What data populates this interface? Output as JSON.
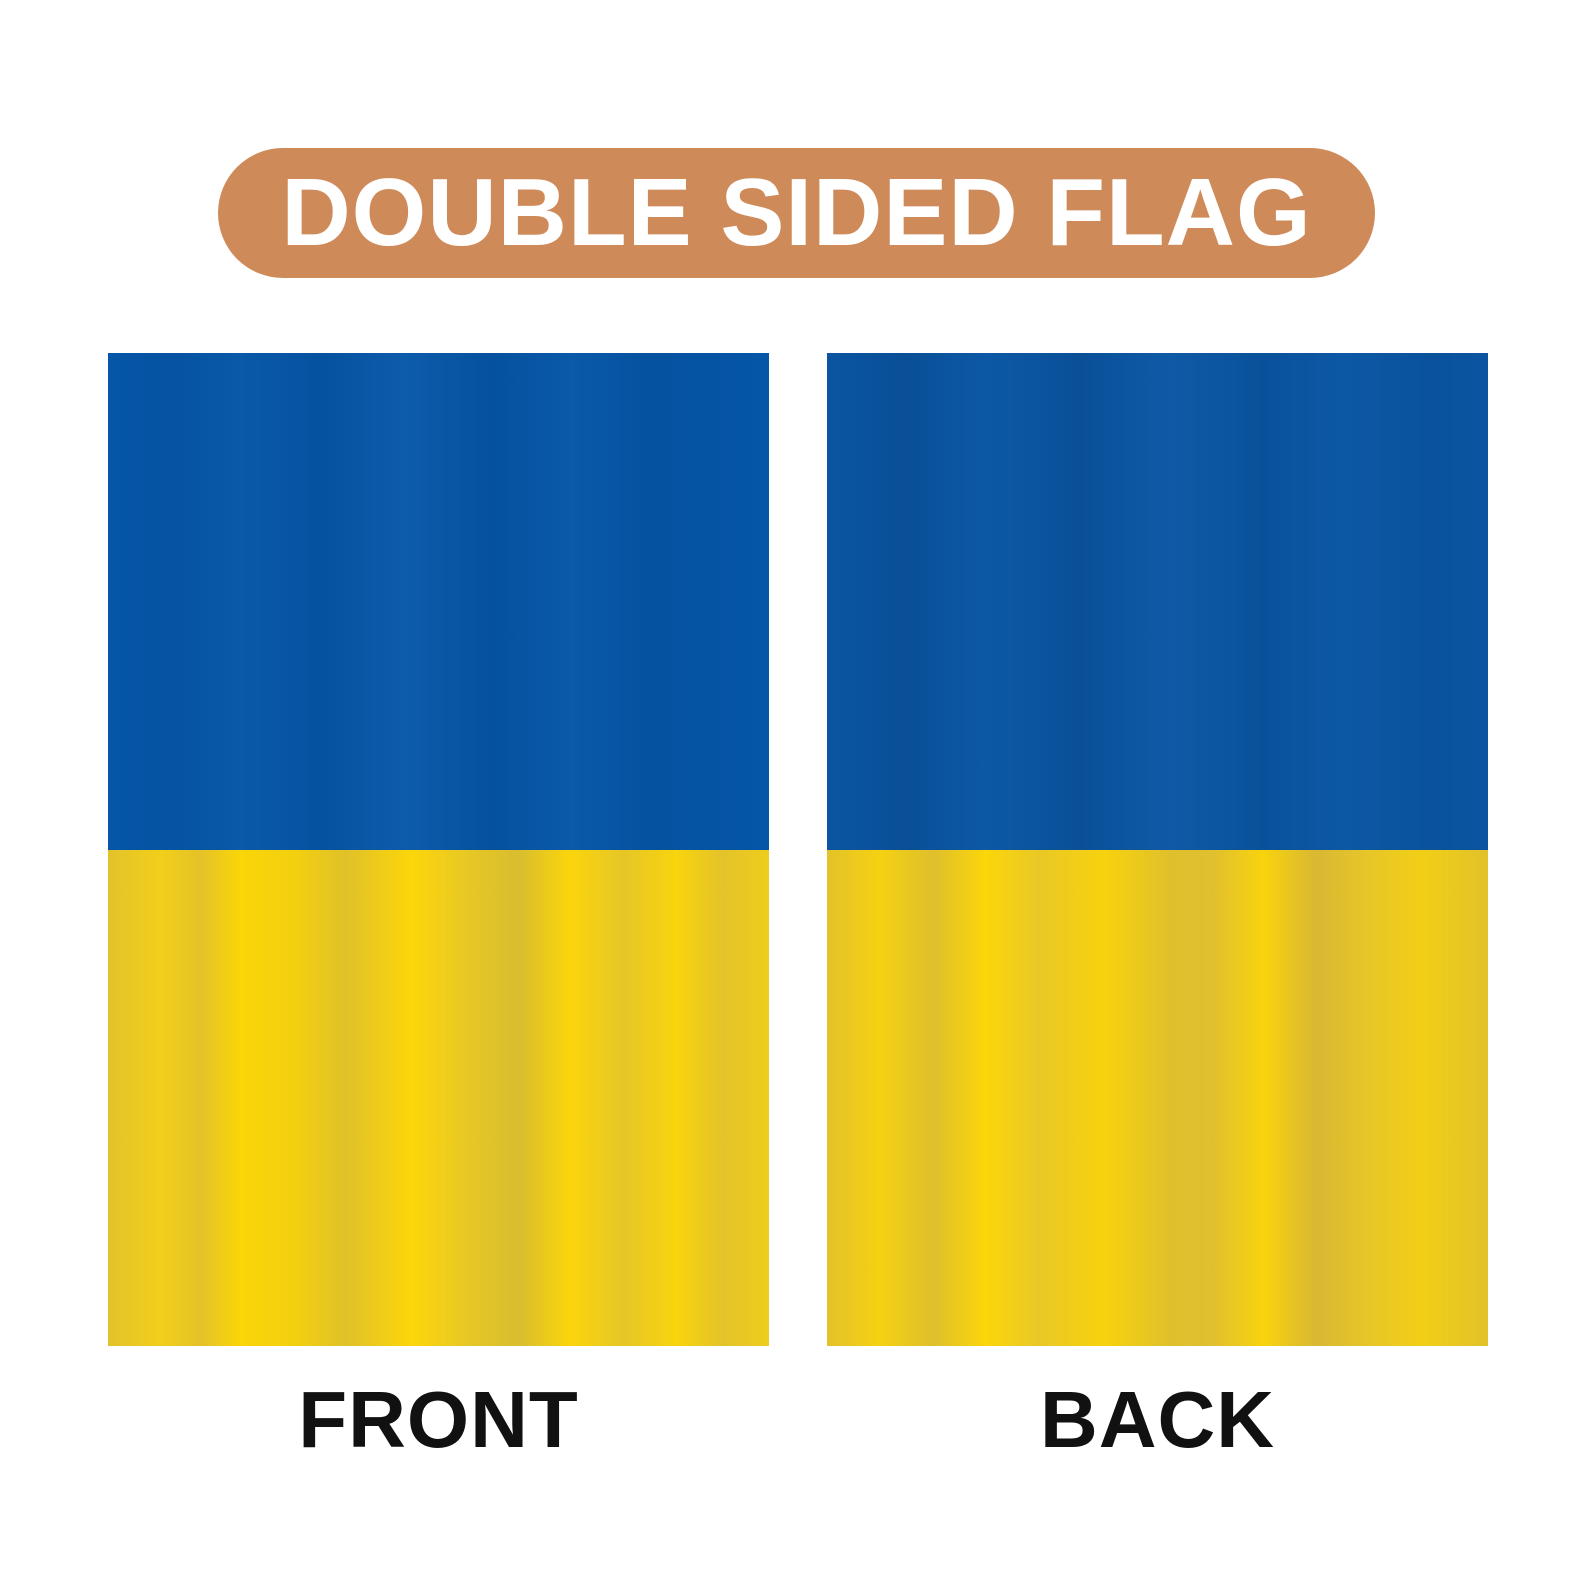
{
  "title": {
    "text": "DOUBLE SIDED FLAG",
    "background_color": "#cf8a5a",
    "text_color": "#ffffff"
  },
  "flags": {
    "front": {
      "label": "FRONT",
      "top_color": "#0556a8",
      "bottom_color": "#fad508"
    },
    "back": {
      "label": "BACK",
      "top_color": "#0a56a4",
      "bottom_color": "#fad508"
    }
  }
}
